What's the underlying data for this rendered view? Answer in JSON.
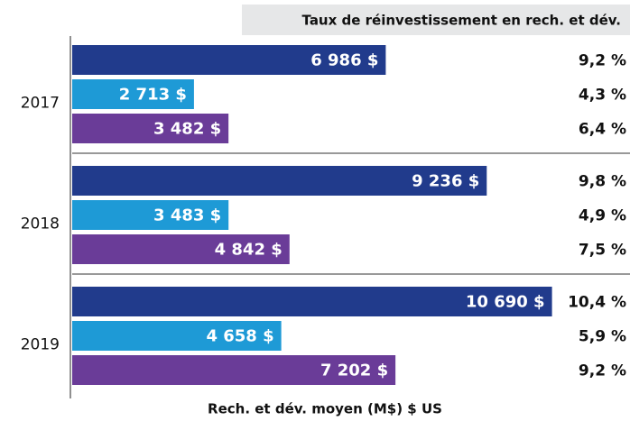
{
  "chart_data": {
    "type": "bar",
    "orientation": "horizontal",
    "rate_header": "Taux de réinvestissement en rech. et dév.",
    "x_label": "Rech. et dév. moyen (M$) $ US",
    "categories": [
      "2017",
      "2018",
      "2019"
    ],
    "xlim": [
      0,
      11000
    ],
    "series": [
      {
        "color": "#213b8c",
        "values": [
          6986,
          9236,
          10690
        ],
        "value_labels": [
          "6 986 $",
          "9 236 $",
          "10 690 $"
        ],
        "rate_labels": [
          "9,2 %",
          "9,8 %",
          "10,4 %"
        ]
      },
      {
        "color": "#1e9ad6",
        "values": [
          2713,
          3483,
          4658
        ],
        "value_labels": [
          "2 713 $",
          "3 483 $",
          "4 658 $"
        ],
        "rate_labels": [
          "4,3 %",
          "4,9 %",
          "5,9 %"
        ]
      },
      {
        "color": "#6a3c98",
        "values": [
          3482,
          4842,
          7202
        ],
        "value_labels": [
          "3 482 $",
          "4 842 $",
          "7 202 $"
        ],
        "rate_labels": [
          "6,4 %",
          "7,5 %",
          "9,2 %"
        ]
      }
    ]
  }
}
